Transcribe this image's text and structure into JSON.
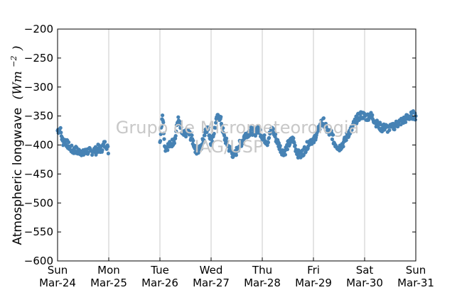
{
  "chart_data": {
    "type": "scatter",
    "title": "",
    "xlabel": "",
    "ylabel": "Atmospheric longwave",
    "ylabel_unit": "(Wm",
    "ylabel_unit_exp": "−2",
    "ylabel_unit_close": ")",
    "ylim": [
      -600,
      -200
    ],
    "yticks": [
      -200,
      -250,
      -300,
      -350,
      -400,
      -450,
      -500,
      -550,
      -600
    ],
    "ytick_labels": [
      "−200",
      "−250",
      "−300",
      "−350",
      "−400",
      "−450",
      "−500",
      "−550",
      "−600"
    ],
    "xlim": [
      "2013-03-24 00:00",
      "2013-03-31 00:00"
    ],
    "xticks": [
      {
        "day": "Sun",
        "date": "Mar-24"
      },
      {
        "day": "Mon",
        "date": "Mar-25"
      },
      {
        "day": "Tue",
        "date": "Mar-26"
      },
      {
        "day": "Wed",
        "date": "Mar-27"
      },
      {
        "day": "Thu",
        "date": "Mar-28"
      },
      {
        "day": "Fri",
        "date": "Mar-29"
      },
      {
        "day": "Sat",
        "date": "Mar-30"
      },
      {
        "day": "Sun",
        "date": "Mar-31"
      }
    ],
    "grid": "vertical",
    "marker_color": "#4682b4",
    "series": [
      {
        "values_note": "approximate trend read from the scatter; each segment is [x_in_days_from_Mar-24_00:00, y]",
        "points": [
          [
            0.0,
            -375
          ],
          [
            0.05,
            -372
          ],
          [
            0.1,
            -395
          ],
          [
            0.15,
            -392
          ],
          [
            0.2,
            -400
          ],
          [
            0.25,
            -405
          ],
          [
            0.3,
            -410
          ],
          [
            0.35,
            -408
          ],
          [
            0.4,
            -412
          ],
          [
            0.45,
            -410
          ],
          [
            0.5,
            -415
          ],
          [
            0.55,
            -412
          ],
          [
            0.6,
            -410
          ],
          [
            0.65,
            -413
          ],
          [
            0.7,
            -408
          ],
          [
            0.75,
            -410
          ],
          [
            0.8,
            -405
          ],
          [
            0.85,
            -408
          ],
          [
            0.9,
            -400
          ],
          [
            0.95,
            -398
          ],
          [
            1.0,
            -412
          ],
          [
            2.0,
            -395
          ],
          [
            2.05,
            -345
          ],
          [
            2.1,
            -405
          ],
          [
            2.15,
            -402
          ],
          [
            2.2,
            -400
          ],
          [
            2.25,
            -395
          ],
          [
            2.3,
            -388
          ],
          [
            2.35,
            -355
          ],
          [
            2.4,
            -370
          ],
          [
            2.45,
            -385
          ],
          [
            2.5,
            -380
          ],
          [
            2.55,
            -378
          ],
          [
            2.6,
            -385
          ],
          [
            2.65,
            -395
          ],
          [
            2.7,
            -408
          ],
          [
            2.75,
            -410
          ],
          [
            2.8,
            -405
          ],
          [
            2.85,
            -390
          ],
          [
            2.9,
            -370
          ],
          [
            2.95,
            -375
          ],
          [
            3.0,
            -395
          ],
          [
            3.05,
            -380
          ],
          [
            3.1,
            -360
          ],
          [
            3.15,
            -348
          ],
          [
            3.2,
            -360
          ],
          [
            3.25,
            -385
          ],
          [
            3.3,
            -395
          ],
          [
            3.35,
            -405
          ],
          [
            3.4,
            -412
          ],
          [
            3.45,
            -420
          ],
          [
            3.5,
            -410
          ],
          [
            3.55,
            -400
          ],
          [
            3.6,
            -395
          ],
          [
            3.65,
            -385
          ],
          [
            3.7,
            -380
          ],
          [
            3.75,
            -378
          ],
          [
            3.8,
            -375
          ],
          [
            3.85,
            -380
          ],
          [
            3.9,
            -372
          ],
          [
            3.95,
            -375
          ],
          [
            4.0,
            -385
          ],
          [
            4.05,
            -390
          ],
          [
            4.1,
            -395
          ],
          [
            4.15,
            -380
          ],
          [
            4.2,
            -372
          ],
          [
            4.25,
            -385
          ],
          [
            4.3,
            -395
          ],
          [
            4.35,
            -405
          ],
          [
            4.4,
            -412
          ],
          [
            4.45,
            -410
          ],
          [
            4.5,
            -400
          ],
          [
            4.55,
            -395
          ],
          [
            4.6,
            -390
          ],
          [
            4.65,
            -405
          ],
          [
            4.7,
            -415
          ],
          [
            4.75,
            -418
          ],
          [
            4.8,
            -412
          ],
          [
            4.85,
            -405
          ],
          [
            4.9,
            -398
          ],
          [
            4.95,
            -390
          ],
          [
            5.0,
            -395
          ],
          [
            5.05,
            -382
          ],
          [
            5.1,
            -375
          ],
          [
            5.15,
            -362
          ],
          [
            5.2,
            -360
          ],
          [
            5.25,
            -372
          ],
          [
            5.3,
            -380
          ],
          [
            5.35,
            -378
          ],
          [
            5.4,
            -395
          ],
          [
            5.45,
            -400
          ],
          [
            5.5,
            -405
          ],
          [
            5.55,
            -400
          ],
          [
            5.6,
            -395
          ],
          [
            5.65,
            -385
          ],
          [
            5.7,
            -378
          ],
          [
            5.75,
            -372
          ],
          [
            5.8,
            -362
          ],
          [
            5.85,
            -355
          ],
          [
            5.9,
            -350
          ],
          [
            5.95,
            -348
          ],
          [
            6.0,
            -350
          ],
          [
            6.05,
            -352
          ],
          [
            6.1,
            -348
          ],
          [
            6.15,
            -352
          ],
          [
            6.2,
            -358
          ],
          [
            6.25,
            -365
          ],
          [
            6.3,
            -368
          ],
          [
            6.35,
            -372
          ],
          [
            6.4,
            -368
          ],
          [
            6.45,
            -372
          ],
          [
            6.55,
            -370
          ],
          [
            6.6,
            -365
          ],
          [
            6.65,
            -363
          ],
          [
            6.7,
            -360
          ],
          [
            6.75,
            -358
          ],
          [
            6.8,
            -355
          ],
          [
            6.85,
            -352
          ],
          [
            6.9,
            -350
          ],
          [
            6.95,
            -348
          ],
          [
            7.0,
            -350
          ]
        ]
      }
    ],
    "watermark_lines": [
      "Grupo de Micrometeorologia",
      "IAG/USP"
    ]
  }
}
